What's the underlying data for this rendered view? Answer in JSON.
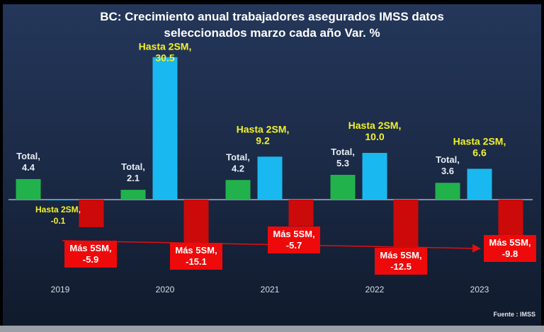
{
  "chart_data": {
    "type": "bar",
    "title": "BC: Crecimiento anual trabajadores asegurados IMSS datos seleccionados marzo cada año Var. %",
    "title_lines": [
      "BC: Crecimiento anual trabajadores asegurados IMSS datos",
      "seleccionados marzo cada año Var. %"
    ],
    "categories": [
      "2019",
      "2020",
      "2021",
      "2022",
      "2023"
    ],
    "series": [
      {
        "name": "Total",
        "color": "#22b24c",
        "values": [
          4.4,
          2.1,
          4.2,
          5.3,
          3.6
        ]
      },
      {
        "name": "Hasta 2SM",
        "color": "#1ab8f0",
        "values": [
          -0.1,
          30.5,
          9.2,
          10.0,
          6.6
        ]
      },
      {
        "name": "Más 5SM",
        "color": "#cc0a0a",
        "values": [
          -5.9,
          -15.1,
          -5.7,
          -12.5,
          -9.8
        ]
      }
    ],
    "data_labels": {
      "Total": [
        "Total,|4.4",
        "Total,|2.1",
        "Total,|4.2",
        "Total,|5.3",
        "Total,|3.6"
      ],
      "Hasta 2SM": [
        "Hasta 2SM,|-0.1",
        "Hasta 2SM,|30.5",
        "Hasta 2SM,|9.2",
        "Hasta 2SM,|10.0",
        "Hasta 2SM,|6.6"
      ],
      "Más 5SM": [
        "Más 5SM,|-5.9",
        "Más 5SM,|-15.1",
        "Más 5SM,|-5.7",
        "Más 5SM,|-12.5",
        "Más 5SM,|-9.8"
      ]
    },
    "trend_arrow": "Más 5SM trend",
    "legend": "none",
    "grid": false,
    "xlabel": "",
    "ylabel": "",
    "source": "Fuente : IMSS",
    "colors": {
      "background": "#1c2c48",
      "title": "#ffffff",
      "hasta_label": "#f2f22a",
      "total_label": "#e6ecf2",
      "mas_box": "#ee0a0a"
    }
  }
}
